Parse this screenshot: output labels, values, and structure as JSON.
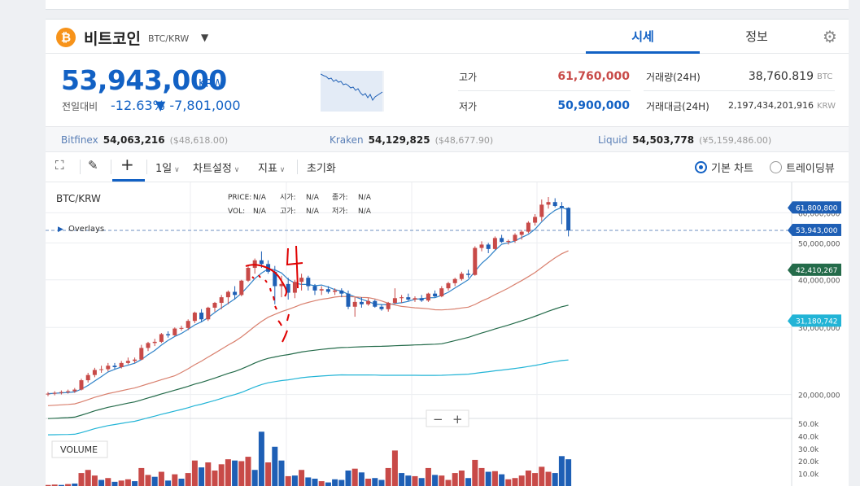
{
  "header": {
    "coin_icon": "bitcoin-icon",
    "coin_symbol": "₿",
    "coin_name": "비트코인",
    "pair": "BTC/KRW",
    "tabs": [
      {
        "label": "시세",
        "active": true
      },
      {
        "label": "정보",
        "active": false
      }
    ],
    "settings_icon": "gear-icon"
  },
  "price": {
    "current": "53,943,000",
    "unit": "KRW",
    "change_label": "전일대비",
    "change_pct": "-12.63%",
    "change_amt": "▼ -7,801,000"
  },
  "stats": {
    "high_label": "고가",
    "high": "61,760,000",
    "low_label": "저가",
    "low": "50,900,000",
    "volume_label": "거래량(24H)",
    "volume": "38,760.819",
    "volume_unit": "BTC",
    "amount_label": "거래대금(24H)",
    "amount": "2,197,434,201,916",
    "amount_unit": "KRW"
  },
  "exchanges": [
    {
      "name": "Bitfinex",
      "price": "54,063,216",
      "usd": "($48,618.00)"
    },
    {
      "name": "Kraken",
      "price": "54,129,825",
      "usd": "($48,677.90)"
    },
    {
      "name": "Liquid",
      "price": "54,503,778",
      "usd": "(¥5,159,486.00)"
    }
  ],
  "toolbar": {
    "fullscreen_icon": "fullscreen-icon",
    "draw_icon": "pencil-icon",
    "crosshair_icon": "crosshair-icon",
    "interval": "1일",
    "chart_settings": "차트설정",
    "indicators": "지표",
    "reset": "초기화",
    "mode_basic": "기본 차트",
    "mode_tradingview": "트레이딩뷰"
  },
  "legend": {
    "pair": "BTC/KRW",
    "overlays": "Overlays",
    "rows": [
      [
        "PRICE:",
        "N/A",
        "시가:",
        "N/A",
        "종가:",
        "N/A"
      ],
      [
        "VOL:",
        "N/A",
        "고가:",
        "N/A",
        "저가:",
        "N/A"
      ]
    ],
    "volume_label": "VOLUME",
    "zoom_out": "−",
    "zoom_in": "+"
  },
  "colors": {
    "up": "#c84a48",
    "down": "#1e5fb5",
    "ma5": "#2f82c8",
    "ma20": "#d9806e",
    "ma60": "#246b4a",
    "ma120": "#22b4d6"
  },
  "chart_data": {
    "type": "candlestick",
    "y_axis": {
      "scale": "log",
      "ylim": [
        18000000,
        70000000
      ],
      "ticks": [
        "60,000,000",
        "50,000,000",
        "40,000,000",
        "30,000,000",
        "20,000,000"
      ]
    },
    "price_markers": [
      {
        "label": "61,800,800",
        "value": 61800800,
        "color": "#1e5fb5"
      },
      {
        "label": "53,943,000",
        "value": 53943000,
        "color": "#1e5fb5"
      },
      {
        "label": "42,410,267",
        "value": 42410267,
        "color": "#246b4a"
      },
      {
        "label": "31,180,742",
        "value": 31180742,
        "color": "#22b4d6"
      }
    ],
    "current_price": 53943000,
    "candles": [
      [
        20.0,
        20.3,
        19.8,
        20.1
      ],
      [
        20.1,
        20.4,
        19.9,
        20.2
      ],
      [
        20.2,
        20.5,
        20.0,
        20.3
      ],
      [
        20.3,
        20.6,
        20.1,
        20.4
      ],
      [
        20.4,
        20.8,
        20.2,
        20.6
      ],
      [
        20.6,
        22.0,
        20.5,
        21.8
      ],
      [
        21.8,
        22.8,
        21.5,
        22.5
      ],
      [
        22.5,
        23.5,
        22.2,
        23.2
      ],
      [
        23.2,
        23.8,
        22.8,
        23.3
      ],
      [
        23.3,
        24.2,
        23.0,
        23.8
      ],
      [
        23.8,
        24.2,
        23.3,
        23.6
      ],
      [
        23.6,
        24.5,
        23.4,
        24.2
      ],
      [
        24.2,
        25.0,
        24.0,
        24.5
      ],
      [
        24.5,
        25.0,
        24.2,
        24.7
      ],
      [
        24.7,
        27.0,
        24.6,
        26.5
      ],
      [
        26.5,
        27.5,
        26.0,
        27.3
      ],
      [
        27.3,
        28.0,
        26.8,
        27.5
      ],
      [
        27.5,
        29.0,
        27.3,
        28.8
      ],
      [
        28.8,
        29.3,
        28.2,
        28.6
      ],
      [
        28.6,
        30.0,
        28.5,
        29.8
      ],
      [
        29.8,
        30.3,
        29.4,
        29.9
      ],
      [
        29.9,
        31.5,
        29.5,
        31.2
      ],
      [
        31.2,
        33.0,
        30.8,
        32.8
      ],
      [
        32.8,
        33.5,
        31.0,
        31.5
      ],
      [
        31.5,
        34.0,
        31.2,
        33.8
      ],
      [
        33.8,
        35.0,
        33.0,
        34.8
      ],
      [
        34.8,
        36.5,
        33.5,
        36.0
      ],
      [
        36.0,
        37.5,
        34.5,
        37.2
      ],
      [
        37.2,
        38.5,
        35.5,
        36.5
      ],
      [
        36.5,
        40.0,
        36.2,
        39.8
      ],
      [
        39.8,
        43.5,
        39.5,
        43.0
      ],
      [
        43.0,
        45.5,
        41.5,
        45.0
      ],
      [
        45.0,
        47.5,
        43.0,
        44.0
      ],
      [
        44.0,
        45.0,
        41.5,
        42.0
      ],
      [
        42.0,
        43.5,
        34.5,
        38.5
      ],
      [
        38.5,
        41.0,
        36.0,
        39.0
      ],
      [
        39.0,
        40.5,
        35.5,
        37.0
      ],
      [
        37.0,
        40.0,
        35.8,
        39.5
      ],
      [
        39.5,
        41.5,
        37.5,
        40.5
      ],
      [
        40.5,
        41.0,
        37.5,
        38.5
      ],
      [
        38.5,
        39.0,
        36.5,
        37.5
      ],
      [
        37.5,
        38.5,
        36.5,
        37.8
      ],
      [
        37.8,
        38.5,
        36.8,
        37.2
      ],
      [
        37.2,
        38.0,
        36.5,
        37.5
      ],
      [
        37.5,
        38.0,
        36.0,
        36.8
      ],
      [
        36.8,
        37.5,
        33.5,
        34.0
      ],
      [
        34.0,
        36.0,
        32.0,
        35.0
      ],
      [
        35.0,
        36.0,
        33.8,
        34.5
      ],
      [
        34.5,
        35.8,
        34.2,
        35.2
      ],
      [
        35.2,
        35.5,
        33.8,
        34.0
      ],
      [
        34.0,
        34.5,
        33.2,
        33.5
      ],
      [
        33.5,
        35.0,
        33.0,
        34.8
      ],
      [
        34.8,
        38.0,
        34.5,
        35.8
      ],
      [
        35.8,
        36.5,
        34.8,
        36.0
      ],
      [
        36.0,
        36.8,
        35.2,
        35.5
      ],
      [
        35.5,
        36.2,
        35.0,
        35.8
      ],
      [
        35.8,
        36.5,
        35.0,
        35.3
      ],
      [
        35.3,
        37.0,
        35.0,
        36.8
      ],
      [
        36.8,
        37.5,
        36.0,
        36.2
      ],
      [
        36.2,
        38.5,
        36.0,
        38.0
      ],
      [
        38.0,
        39.5,
        37.5,
        39.2
      ],
      [
        39.2,
        40.5,
        38.5,
        40.2
      ],
      [
        40.2,
        42.0,
        39.8,
        41.5
      ],
      [
        41.5,
        42.5,
        40.5,
        41.2
      ],
      [
        41.2,
        49.0,
        41.0,
        48.5
      ],
      [
        48.5,
        50.5,
        47.5,
        49.5
      ],
      [
        49.5,
        50.0,
        47.0,
        48.2
      ],
      [
        48.2,
        52.0,
        48.0,
        51.5
      ],
      [
        51.5,
        52.5,
        50.0,
        50.3
      ],
      [
        50.3,
        51.0,
        49.5,
        50.6
      ],
      [
        50.6,
        53.0,
        50.0,
        52.5
      ],
      [
        52.5,
        54.0,
        51.0,
        53.5
      ],
      [
        53.5,
        57.0,
        53.0,
        56.5
      ],
      [
        56.5,
        59.5,
        55.5,
        58.5
      ],
      [
        58.5,
        65.0,
        57.0,
        63.0
      ],
      [
        63.0,
        66.0,
        61.5,
        64.0
      ],
      [
        64.0,
        65.5,
        62.0,
        62.5
      ],
      [
        62.5,
        64.0,
        56.0,
        61.8
      ],
      [
        61.8,
        62.0,
        52.0,
        53.9
      ]
    ],
    "candles_unit": "million KRW",
    "candles_format": "[open, high, low, close]",
    "volume_axis": {
      "ticks": [
        "50.0k",
        "40.0k",
        "30.0k",
        "20.0k",
        "10.0k"
      ],
      "ylim": [
        0,
        52000
      ]
    },
    "volumes": [
      [
        1500,
        1
      ],
      [
        1800,
        1
      ],
      [
        1500,
        0
      ],
      [
        2200,
        1
      ],
      [
        2600,
        0
      ],
      [
        11000,
        1
      ],
      [
        13500,
        1
      ],
      [
        9000,
        1
      ],
      [
        5500,
        0
      ],
      [
        7000,
        1
      ],
      [
        4000,
        0
      ],
      [
        5000,
        1
      ],
      [
        6000,
        1
      ],
      [
        4500,
        0
      ],
      [
        15000,
        1
      ],
      [
        9500,
        1
      ],
      [
        8000,
        0
      ],
      [
        12000,
        1
      ],
      [
        5000,
        0
      ],
      [
        10000,
        1
      ],
      [
        6500,
        0
      ],
      [
        11000,
        1
      ],
      [
        21000,
        1
      ],
      [
        15500,
        0
      ],
      [
        19500,
        1
      ],
      [
        13000,
        1
      ],
      [
        18000,
        1
      ],
      [
        22000,
        1
      ],
      [
        21000,
        0
      ],
      [
        20500,
        1
      ],
      [
        24000,
        1
      ],
      [
        13500,
        0
      ],
      [
        44000,
        0
      ],
      [
        19500,
        1
      ],
      [
        32000,
        0
      ],
      [
        21000,
        0
      ],
      [
        8500,
        1
      ],
      [
        9000,
        0
      ],
      [
        13500,
        1
      ],
      [
        7500,
        0
      ],
      [
        6500,
        0
      ],
      [
        4500,
        1
      ],
      [
        3500,
        0
      ],
      [
        6000,
        0
      ],
      [
        5500,
        0
      ],
      [
        13000,
        0
      ],
      [
        14500,
        1
      ],
      [
        11500,
        0
      ],
      [
        6500,
        1
      ],
      [
        7000,
        0
      ],
      [
        5500,
        0
      ],
      [
        15000,
        1
      ],
      [
        29000,
        1
      ],
      [
        11000,
        0
      ],
      [
        9000,
        0
      ],
      [
        8500,
        1
      ],
      [
        7000,
        0
      ],
      [
        15000,
        1
      ],
      [
        9500,
        0
      ],
      [
        9000,
        1
      ],
      [
        5500,
        1
      ],
      [
        11000,
        1
      ],
      [
        13000,
        1
      ],
      [
        7000,
        0
      ],
      [
        21500,
        1
      ],
      [
        15000,
        1
      ],
      [
        12000,
        0
      ],
      [
        12500,
        1
      ],
      [
        10000,
        0
      ],
      [
        6000,
        1
      ],
      [
        7000,
        1
      ],
      [
        9000,
        1
      ],
      [
        13000,
        1
      ],
      [
        11000,
        1
      ],
      [
        16000,
        1
      ],
      [
        12000,
        1
      ],
      [
        11000,
        0
      ],
      [
        24500,
        0
      ],
      [
        22000,
        0
      ]
    ]
  }
}
